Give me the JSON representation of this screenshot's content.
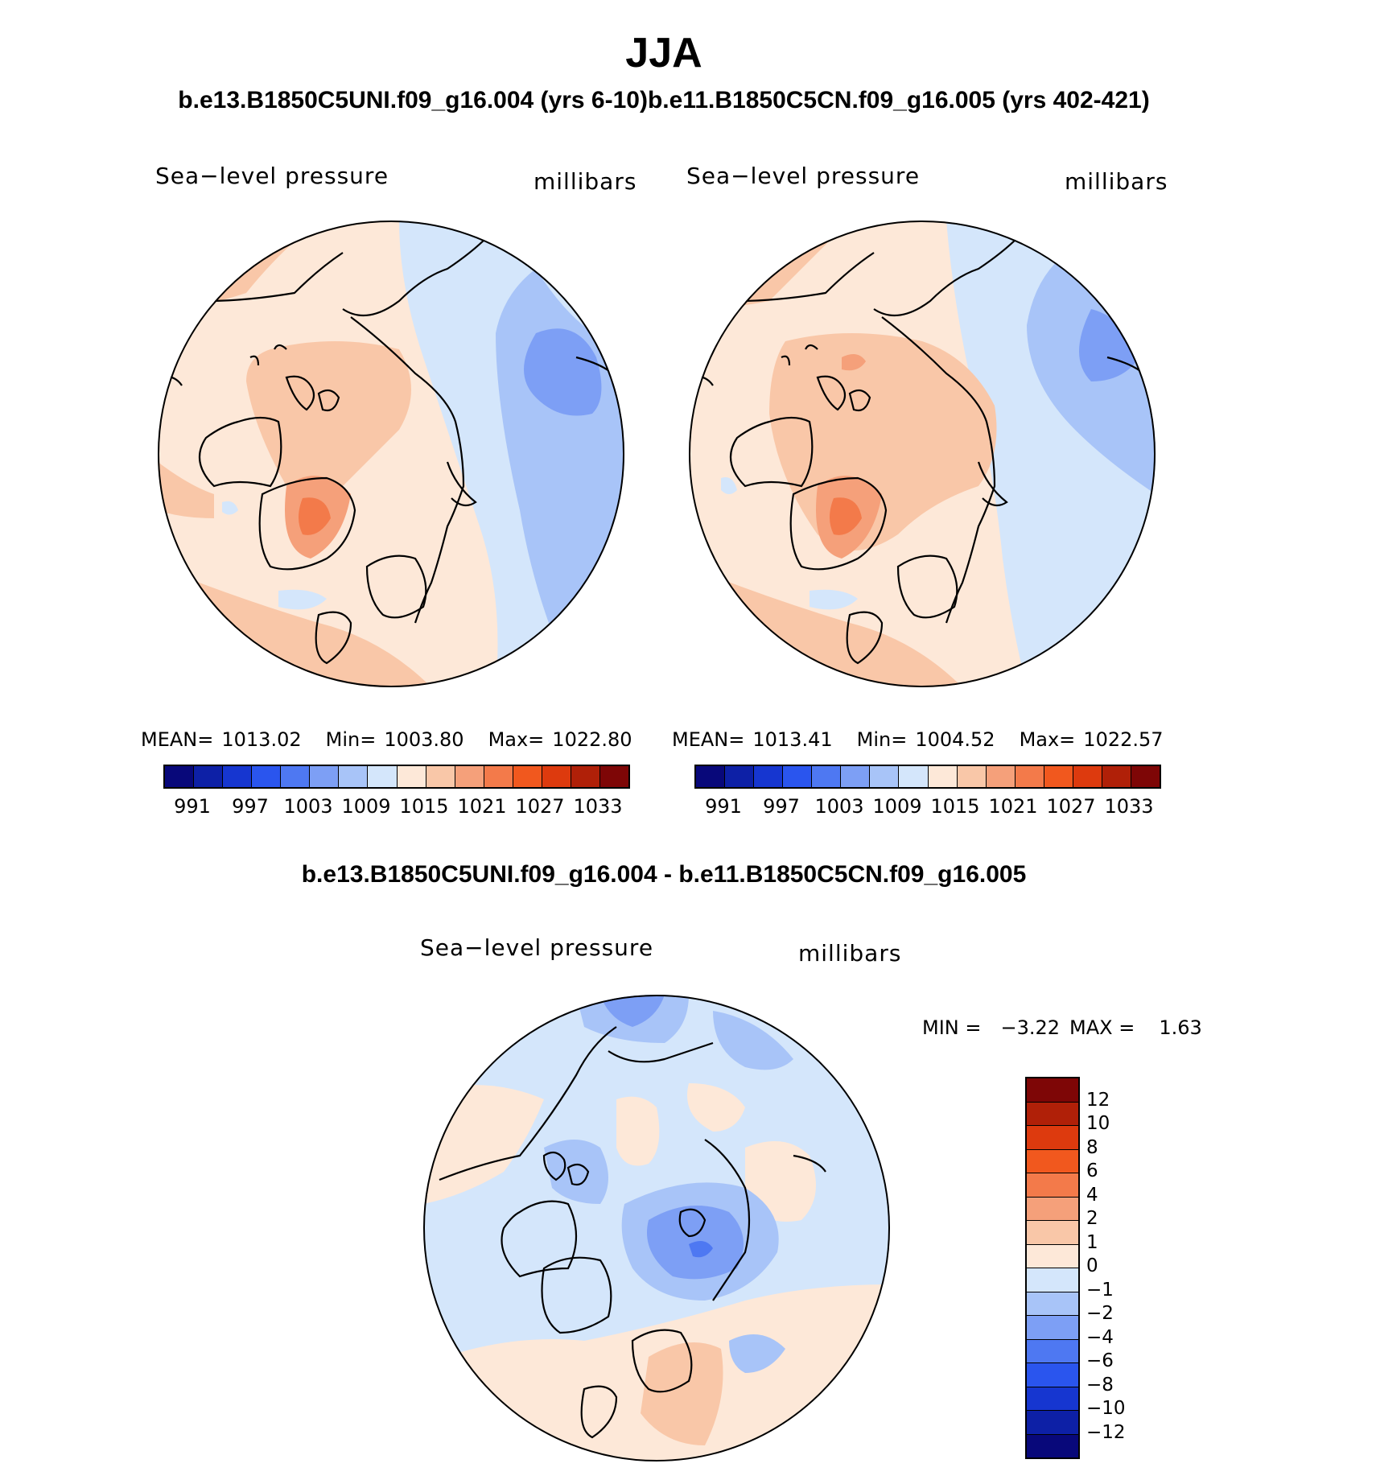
{
  "title": "JJA",
  "case_titles": "b.e13.B1850C5UNI.f09_g16.004 (yrs 6-10)b.e11.B1850C5CN.f09_g16.005 (yrs 402-421)",
  "diff_title": "b.e13.B1850C5UNI.f09_g16.004 - b.e11.B1850C5CN.f09_g16.005",
  "colors": {
    "abs_scale": [
      "#08087a",
      "#0d20a6",
      "#1636d0",
      "#2a55ee",
      "#4e78f2",
      "#7d9ff5",
      "#a8c4f8",
      "#d4e6fb",
      "#fde8d8",
      "#f9c7a8",
      "#f5a07a",
      "#f37a4a",
      "#f1581e",
      "#dd3a0e",
      "#b02008",
      "#7e0606"
    ],
    "diff_scale": [
      "#7e0606",
      "#b02008",
      "#dd3a0e",
      "#f1581e",
      "#f37a4a",
      "#f5a07a",
      "#f9c7a8",
      "#fde8d8",
      "#d4e6fb",
      "#a8c4f8",
      "#7d9ff5",
      "#4e78f2",
      "#2a55ee",
      "#1636d0",
      "#0d20a6",
      "#08087a"
    ]
  },
  "panels": [
    {
      "field": "Sea−level pressure",
      "units": "millibars",
      "stats": {
        "mean_label": "MEAN=",
        "mean": "1013.02",
        "min_label": "Min=",
        "min": "1003.80",
        "max_label": "Max=",
        "max": "1022.80"
      },
      "colorbar_labels": [
        "991",
        "997",
        "1003",
        "1009",
        "1015",
        "1021",
        "1027",
        "1033"
      ]
    },
    {
      "field": "Sea−level pressure",
      "units": "millibars",
      "stats": {
        "mean_label": "MEAN=",
        "mean": "1013.41",
        "min_label": "Min=",
        "min": "1004.52",
        "max_label": "Max=",
        "max": "1022.57"
      },
      "colorbar_labels": [
        "991",
        "997",
        "1003",
        "1009",
        "1015",
        "1021",
        "1027",
        "1033"
      ]
    }
  ],
  "diff_panel": {
    "field": "Sea−level pressure",
    "units": "millibars",
    "minmax": {
      "min_label": "MIN =",
      "min": "−3.22",
      "max_label": "MAX =",
      "max": "1.63"
    },
    "colorbar_labels": [
      "12",
      "10",
      "8",
      "6",
      "4",
      "2",
      "1",
      "0",
      "−1",
      "−2",
      "−4",
      "−6",
      "−8",
      "−10",
      "−12"
    ]
  }
}
